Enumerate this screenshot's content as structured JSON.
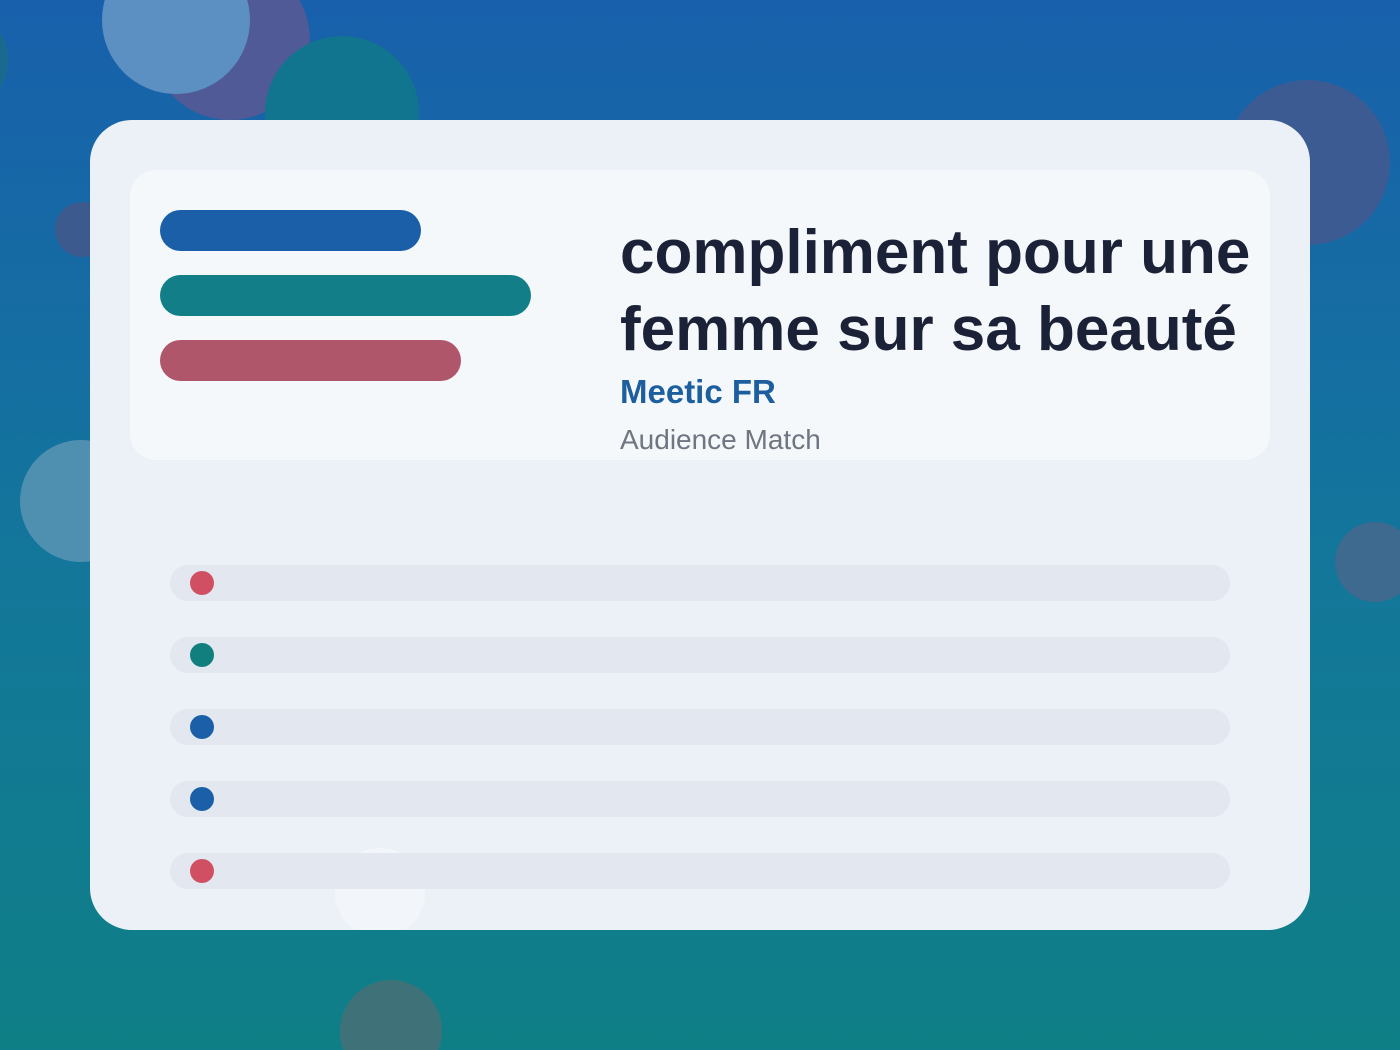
{
  "colors": {
    "blue": "#1a5fa8",
    "teal": "#127f88",
    "rose": "#b0566b",
    "red_dot": "#d14f63",
    "teal_dot": "#117f7d",
    "blue_dot": "#1a5fa8",
    "headline": "#1b2237",
    "brand": "#1d5e9e",
    "muted": "#6f7581"
  },
  "header": {
    "headline": "compliment pour une femme sur sa beauté",
    "brand": "Meetic FR",
    "subtitle": "Audience Match"
  },
  "legend_bars": [
    {
      "color": "blue"
    },
    {
      "color": "teal"
    },
    {
      "color": "rose"
    }
  ],
  "rows": [
    {
      "dot_color": "red_dot"
    },
    {
      "dot_color": "teal_dot"
    },
    {
      "dot_color": "blue_dot"
    },
    {
      "dot_color": "blue_dot"
    },
    {
      "dot_color": "red_dot"
    }
  ]
}
